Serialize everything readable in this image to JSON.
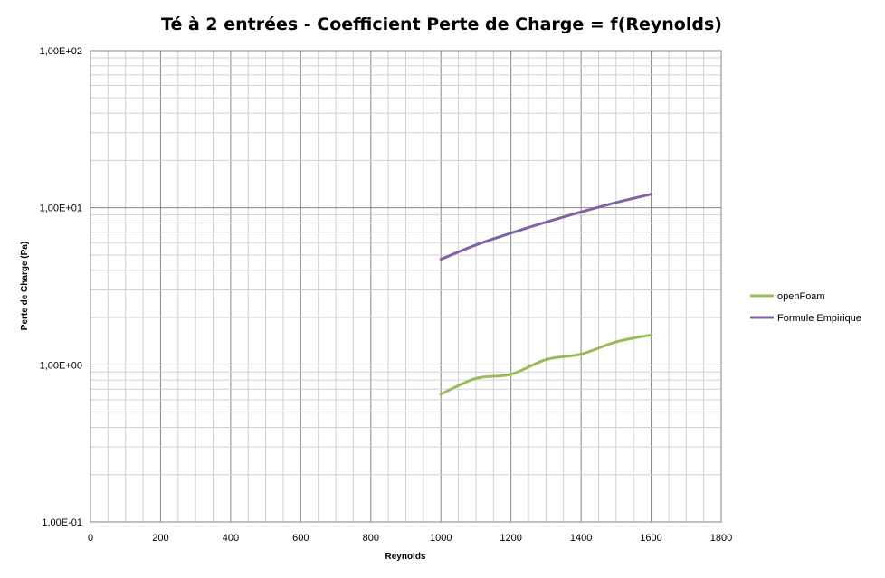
{
  "chart_data": {
    "type": "line",
    "title": "Té à 2 entrées - Coefficient Perte de Charge = f(Reynolds)",
    "xlabel": "Reynolds",
    "ylabel": "Perte de Charge (Pa)",
    "xlim": [
      0,
      1800
    ],
    "ylim": [
      0.1,
      100
    ],
    "yscale": "log",
    "x_ticks": [
      "0",
      "200",
      "400",
      "600",
      "800",
      "1000",
      "1200",
      "1400",
      "1600",
      "1800"
    ],
    "y_ticks": [
      "1,00E-01",
      "1,00E+00",
      "1,00E+01",
      "1,00E+02"
    ],
    "grid": true,
    "legend_position": "right",
    "series": [
      {
        "name": "openFoam",
        "color": "#9bbb59",
        "x": [
          1000,
          1100,
          1200,
          1300,
          1400,
          1500,
          1600
        ],
        "y": [
          0.65,
          0.82,
          0.87,
          1.08,
          1.17,
          1.4,
          1.55
        ]
      },
      {
        "name": "Formule Empirique",
        "color": "#8064a2",
        "x": [
          1000,
          1100,
          1200,
          1300,
          1400,
          1500,
          1600
        ],
        "y": [
          4.7,
          5.8,
          6.9,
          8.1,
          9.4,
          10.8,
          12.2
        ]
      }
    ]
  }
}
